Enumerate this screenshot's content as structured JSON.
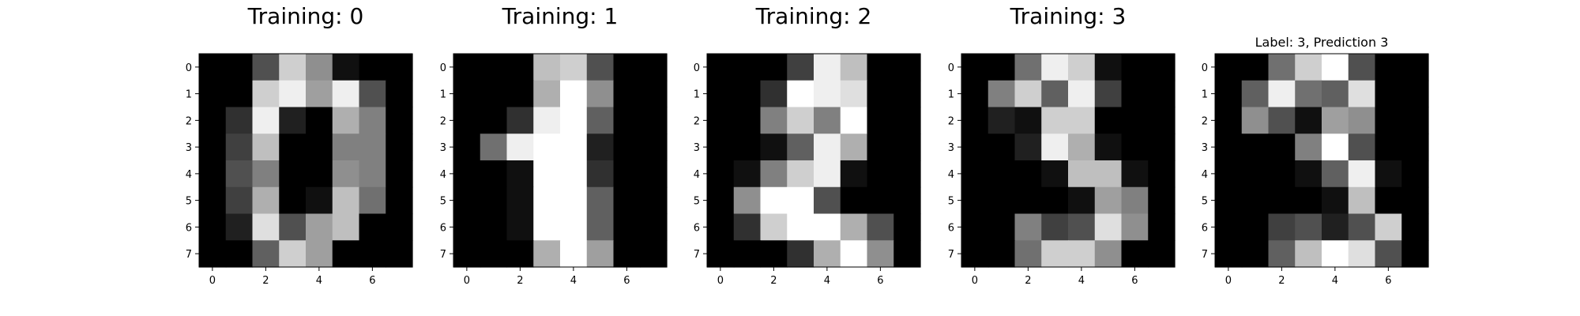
{
  "chart_data": [
    {
      "type": "heatmap",
      "title": "Training: 0",
      "xticks": [
        0,
        2,
        4,
        6
      ],
      "yticks": [
        0,
        1,
        2,
        3,
        4,
        5,
        6,
        7
      ],
      "xlim": [
        -0.5,
        7.5
      ],
      "ylim": [
        7.5,
        -0.5
      ],
      "colormap": "gray_r",
      "value_range": [
        0,
        16
      ],
      "values": [
        [
          0,
          0,
          5,
          13,
          9,
          1,
          0,
          0
        ],
        [
          0,
          0,
          13,
          15,
          10,
          15,
          5,
          0
        ],
        [
          0,
          3,
          15,
          2,
          0,
          11,
          8,
          0
        ],
        [
          0,
          4,
          12,
          0,
          0,
          8,
          8,
          0
        ],
        [
          0,
          5,
          8,
          0,
          0,
          9,
          8,
          0
        ],
        [
          0,
          4,
          11,
          0,
          1,
          12,
          7,
          0
        ],
        [
          0,
          2,
          14,
          5,
          10,
          12,
          0,
          0
        ],
        [
          0,
          0,
          6,
          13,
          10,
          0,
          0,
          0
        ]
      ]
    },
    {
      "type": "heatmap",
      "title": "Training: 1",
      "xticks": [
        0,
        2,
        4,
        6
      ],
      "yticks": [
        0,
        1,
        2,
        3,
        4,
        5,
        6,
        7
      ],
      "xlim": [
        -0.5,
        7.5
      ],
      "ylim": [
        7.5,
        -0.5
      ],
      "colormap": "gray_r",
      "value_range": [
        0,
        16
      ],
      "values": [
        [
          0,
          0,
          0,
          12,
          13,
          5,
          0,
          0
        ],
        [
          0,
          0,
          0,
          11,
          16,
          9,
          0,
          0
        ],
        [
          0,
          0,
          3,
          15,
          16,
          6,
          0,
          0
        ],
        [
          0,
          7,
          15,
          16,
          16,
          2,
          0,
          0
        ],
        [
          0,
          0,
          1,
          16,
          16,
          3,
          0,
          0
        ],
        [
          0,
          0,
          1,
          16,
          16,
          6,
          0,
          0
        ],
        [
          0,
          0,
          1,
          16,
          16,
          6,
          0,
          0
        ],
        [
          0,
          0,
          0,
          11,
          16,
          10,
          0,
          0
        ]
      ]
    },
    {
      "type": "heatmap",
      "title": "Training: 2",
      "xticks": [
        0,
        2,
        4,
        6
      ],
      "yticks": [
        0,
        1,
        2,
        3,
        4,
        5,
        6,
        7
      ],
      "xlim": [
        -0.5,
        7.5
      ],
      "ylim": [
        7.5,
        -0.5
      ],
      "colormap": "gray_r",
      "value_range": [
        0,
        16
      ],
      "values": [
        [
          0,
          0,
          0,
          4,
          15,
          12,
          0,
          0
        ],
        [
          0,
          0,
          3,
          16,
          15,
          14,
          0,
          0
        ],
        [
          0,
          0,
          8,
          13,
          8,
          16,
          0,
          0
        ],
        [
          0,
          0,
          1,
          6,
          15,
          11,
          0,
          0
        ],
        [
          0,
          1,
          8,
          13,
          15,
          1,
          0,
          0
        ],
        [
          0,
          9,
          16,
          16,
          5,
          0,
          0,
          0
        ],
        [
          0,
          3,
          13,
          16,
          16,
          11,
          5,
          0
        ],
        [
          0,
          0,
          0,
          3,
          11,
          16,
          9,
          0
        ]
      ]
    },
    {
      "type": "heatmap",
      "title": "Training: 3",
      "xticks": [
        0,
        2,
        4,
        6
      ],
      "yticks": [
        0,
        1,
        2,
        3,
        4,
        5,
        6,
        7
      ],
      "xlim": [
        -0.5,
        7.5
      ],
      "ylim": [
        7.5,
        -0.5
      ],
      "colormap": "gray_r",
      "value_range": [
        0,
        16
      ],
      "values": [
        [
          0,
          0,
          7,
          15,
          13,
          1,
          0,
          0
        ],
        [
          0,
          8,
          13,
          6,
          15,
          4,
          0,
          0
        ],
        [
          0,
          2,
          1,
          13,
          13,
          0,
          0,
          0
        ],
        [
          0,
          0,
          2,
          15,
          11,
          1,
          0,
          0
        ],
        [
          0,
          0,
          0,
          1,
          12,
          12,
          1,
          0
        ],
        [
          0,
          0,
          0,
          0,
          1,
          10,
          8,
          0
        ],
        [
          0,
          0,
          8,
          4,
          5,
          14,
          9,
          0
        ],
        [
          0,
          0,
          7,
          13,
          13,
          9,
          0,
          0
        ]
      ]
    },
    {
      "type": "heatmap",
      "title": "Label: 3, Prediction 3",
      "xticks": [
        0,
        2,
        4,
        6
      ],
      "yticks": [
        0,
        1,
        2,
        3,
        4,
        5,
        6,
        7
      ],
      "xlim": [
        -0.5,
        7.5
      ],
      "ylim": [
        7.5,
        -0.5
      ],
      "colormap": "gray_r",
      "value_range": [
        0,
        16
      ],
      "values": [
        [
          0,
          0,
          7,
          13,
          16,
          5,
          0,
          0
        ],
        [
          0,
          6,
          15,
          7,
          6,
          14,
          0,
          0
        ],
        [
          0,
          9,
          5,
          1,
          10,
          9,
          0,
          0
        ],
        [
          0,
          0,
          0,
          8,
          16,
          5,
          0,
          0
        ],
        [
          0,
          0,
          0,
          1,
          6,
          15,
          1,
          0
        ],
        [
          0,
          0,
          0,
          0,
          1,
          12,
          0,
          0
        ],
        [
          0,
          0,
          4,
          5,
          2,
          5,
          13,
          0
        ],
        [
          0,
          0,
          6,
          12,
          16,
          14,
          5,
          0
        ]
      ]
    }
  ]
}
